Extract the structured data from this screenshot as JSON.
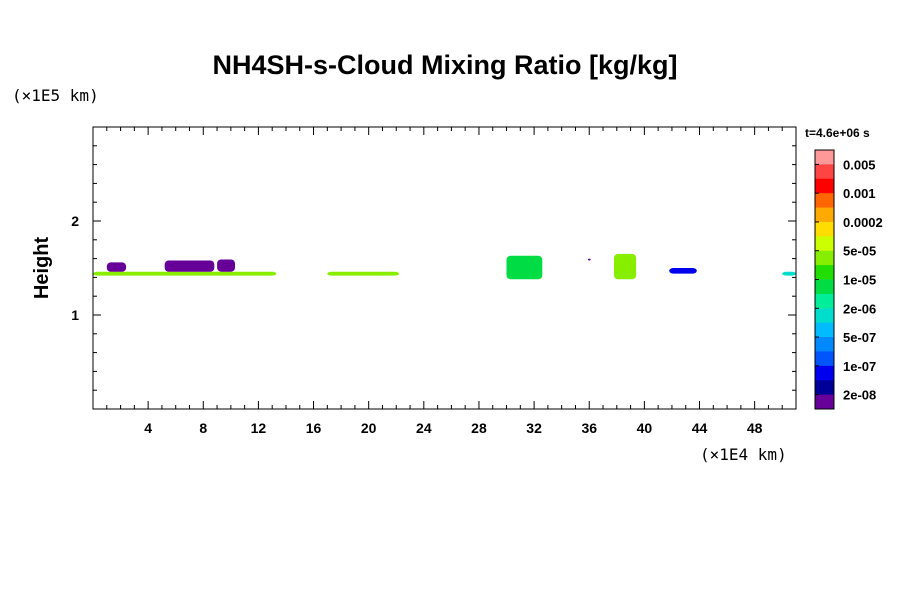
{
  "chart_data": {
    "type": "heatmap",
    "title": "NH4SH-s-Cloud Mixing Ratio [kg/kg]",
    "xunit": "(×1E4 km)",
    "yunit": "(×1E5 km)",
    "ylabel": "Height",
    "time_label": "t=4.6e+06 s",
    "xlim": [
      0,
      51
    ],
    "ylim": [
      0,
      3
    ],
    "xticks": [
      "4",
      "8",
      "12",
      "16",
      "20",
      "24",
      "28",
      "32",
      "36",
      "40",
      "44",
      "48"
    ],
    "xtick_values": [
      4,
      8,
      12,
      16,
      20,
      24,
      28,
      32,
      36,
      40,
      44,
      48
    ],
    "yticks": [
      "1",
      "2"
    ],
    "ytick_values": [
      1,
      2
    ],
    "colorbar": {
      "labels": [
        "0.005",
        "0.001",
        "0.0002",
        "5e-05",
        "1e-05",
        "2e-06",
        "5e-07",
        "1e-07",
        "2e-08"
      ],
      "colors": [
        "#ff9999",
        "#ff4444",
        "#ff0000",
        "#ff6600",
        "#ffaa00",
        "#ffdd00",
        "#ccff00",
        "#88ee00",
        "#22dd00",
        "#00dd44",
        "#00ee99",
        "#00ddcc",
        "#00bbff",
        "#0088ff",
        "#0055ff",
        "#0000ee",
        "#000099",
        "#660099"
      ]
    },
    "cloud_regions": [
      {
        "x": [
          0,
          13.3
        ],
        "y": [
          1.42,
          1.46
        ],
        "level": "5e-05"
      },
      {
        "x": [
          1.0,
          2.4
        ],
        "y": [
          1.46,
          1.56
        ],
        "level": "2e-08"
      },
      {
        "x": [
          5.2,
          8.8
        ],
        "y": [
          1.46,
          1.58
        ],
        "level": "2e-08"
      },
      {
        "x": [
          9.0,
          10.3
        ],
        "y": [
          1.46,
          1.59
        ],
        "level": "2e-08"
      },
      {
        "x": [
          17.0,
          22.2
        ],
        "y": [
          1.42,
          1.46
        ],
        "level": "5e-05"
      },
      {
        "x": [
          30.0,
          32.6
        ],
        "y": [
          1.38,
          1.63
        ],
        "level": "1e-05"
      },
      {
        "x": [
          35.9,
          36.1
        ],
        "y": [
          1.58,
          1.6
        ],
        "level": "2e-08"
      },
      {
        "x": [
          37.8,
          39.4
        ],
        "y": [
          1.38,
          1.65
        ],
        "level": "5e-05"
      },
      {
        "x": [
          41.8,
          43.8
        ],
        "y": [
          1.44,
          1.5
        ],
        "level": "1e-07"
      },
      {
        "x": [
          50.0,
          51.0
        ],
        "y": [
          1.42,
          1.46
        ],
        "level": "2e-06"
      }
    ]
  }
}
